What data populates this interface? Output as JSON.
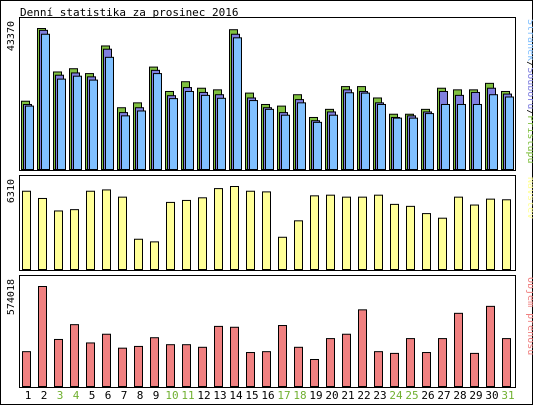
{
  "title": "Denní statistika za prosinec 2016",
  "colors": {
    "hits": "#80c040",
    "files": "#8080e0",
    "pages": "#80c0ff",
    "visits": "#ffff98",
    "kbytes": "#f08080",
    "weekend_label": "#70b030",
    "weekday_label": "#000000",
    "panel_bg": "#ffffff",
    "outline": "#000000"
  },
  "chart_data": [
    {
      "type": "bar",
      "name": "requests-panel",
      "ymax_label": "43370",
      "ylim": [
        0,
        43370
      ],
      "legend": [
        {
          "text": "Stránek",
          "color": "#80c0ff"
        },
        {
          "text": "/",
          "color": "#000000"
        },
        {
          "text": "Souborů",
          "color": "#8080e0"
        },
        {
          "text": "/",
          "color": "#000000"
        },
        {
          "text": "Přístupů",
          "color": "#80c040"
        }
      ],
      "categories": [
        "1",
        "2",
        "3",
        "4",
        "5",
        "6",
        "7",
        "8",
        "9",
        "10",
        "11",
        "12",
        "13",
        "14",
        "15",
        "16",
        "17",
        "18",
        "19",
        "20",
        "21",
        "22",
        "23",
        "24",
        "25",
        "26",
        "27",
        "28",
        "29",
        "30",
        "31"
      ],
      "series": [
        {
          "key": "hits",
          "values": [
            21000,
            43370,
            30000,
            31000,
            29500,
            38000,
            19000,
            20500,
            31500,
            24000,
            27000,
            25000,
            24500,
            43000,
            23500,
            20000,
            19500,
            23000,
            16000,
            18500,
            25500,
            25500,
            22000,
            17000,
            17000,
            18500,
            25000,
            24500,
            24500,
            26500,
            24000
          ]
        },
        {
          "key": "files",
          "values": [
            20000,
            42800,
            29000,
            29700,
            28500,
            37000,
            17500,
            19000,
            30500,
            22700,
            25200,
            23700,
            23000,
            41600,
            22000,
            19000,
            17500,
            21500,
            15000,
            17700,
            24500,
            24000,
            20500,
            16000,
            16500,
            17700,
            24000,
            22800,
            23700,
            25000,
            23200
          ]
        },
        {
          "key": "pages",
          "values": [
            19500,
            41600,
            27800,
            28700,
            27500,
            34500,
            16500,
            18000,
            29500,
            21800,
            24000,
            22800,
            21900,
            40500,
            21200,
            18500,
            16700,
            20500,
            14500,
            16700,
            23600,
            23500,
            20000,
            15800,
            15800,
            17200,
            20000,
            20000,
            20000,
            23000,
            22300
          ]
        }
      ]
    },
    {
      "type": "bar",
      "name": "visits-panel",
      "ymax_label": "6310",
      "ylim": [
        0,
        6310
      ],
      "legend": [
        {
          "text": "Návštěv",
          "color": "#ffff98"
        }
      ],
      "categories": [
        "1",
        "2",
        "3",
        "4",
        "5",
        "6",
        "7",
        "8",
        "9",
        "10",
        "11",
        "12",
        "13",
        "14",
        "15",
        "16",
        "17",
        "18",
        "19",
        "20",
        "21",
        "22",
        "23",
        "24",
        "25",
        "26",
        "27",
        "28",
        "29",
        "30",
        "31"
      ],
      "series": [
        {
          "key": "visits",
          "values": [
            5950,
            5400,
            4450,
            4550,
            5950,
            6050,
            5500,
            2300,
            2100,
            5100,
            5250,
            5450,
            6150,
            6310,
            5950,
            5900,
            2450,
            3700,
            5600,
            5650,
            5500,
            5500,
            5650,
            4950,
            4800,
            4250,
            3900,
            5500,
            4900,
            5350,
            5300
          ]
        }
      ]
    },
    {
      "type": "bar",
      "name": "kbytes-panel",
      "ymax_label": "574018",
      "ylim": [
        0,
        574018
      ],
      "legend": [
        {
          "text": "Objem přenosu",
          "color": "#f08080"
        }
      ],
      "categories": [
        "1",
        "2",
        "3",
        "4",
        "5",
        "6",
        "7",
        "8",
        "9",
        "10",
        "11",
        "12",
        "13",
        "14",
        "15",
        "16",
        "17",
        "18",
        "19",
        "20",
        "21",
        "22",
        "23",
        "24",
        "25",
        "26",
        "27",
        "28",
        "29",
        "30",
        "31"
      ],
      "series": [
        {
          "key": "kbytes",
          "values": [
            200000,
            574018,
            270000,
            355000,
            250000,
            300000,
            220000,
            230000,
            280000,
            240000,
            240000,
            225000,
            345000,
            340000,
            195000,
            200000,
            350000,
            225000,
            155000,
            275000,
            300000,
            440000,
            200000,
            190000,
            275000,
            195000,
            275000,
            420000,
            190000,
            460000,
            275000
          ]
        }
      ]
    }
  ]
}
